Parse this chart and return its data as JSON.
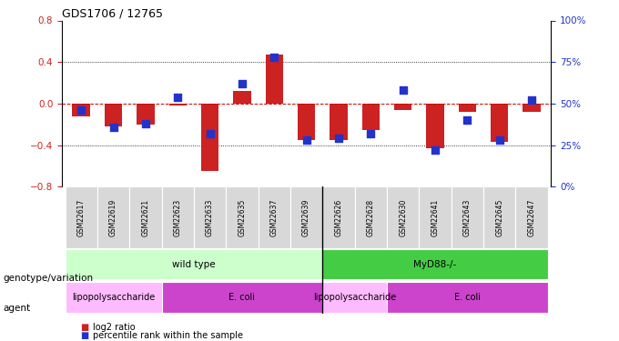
{
  "title": "GDS1706 / 12765",
  "samples": [
    "GSM22617",
    "GSM22619",
    "GSM22621",
    "GSM22623",
    "GSM22633",
    "GSM22635",
    "GSM22637",
    "GSM22639",
    "GSM22626",
    "GSM22628",
    "GSM22630",
    "GSM22641",
    "GSM22643",
    "GSM22645",
    "GSM22647"
  ],
  "log2_ratio": [
    -0.12,
    -0.22,
    -0.2,
    -0.02,
    -0.65,
    0.12,
    0.47,
    -0.35,
    -0.35,
    -0.25,
    -0.06,
    -0.43,
    -0.08,
    -0.37,
    -0.08
  ],
  "percentile_rank": [
    46,
    36,
    38,
    54,
    32,
    62,
    78,
    28,
    29,
    32,
    58,
    22,
    40,
    28,
    52
  ],
  "ylim": [
    -0.8,
    0.8
  ],
  "yticks_left": [
    -0.8,
    -0.4,
    0.0,
    0.4,
    0.8
  ],
  "yticks_right": [
    0,
    25,
    50,
    75,
    100
  ],
  "bar_color_red": "#cc2222",
  "bar_color_blue": "#2233cc",
  "zero_line_color": "#cc0000",
  "grid_color": "#000000",
  "ticklabel_bg": "#d8d8d8",
  "genotype_groups": [
    {
      "label": "wild type",
      "start": 0,
      "end": 7,
      "color": "#ccffcc"
    },
    {
      "label": "MyD88-/-",
      "start": 8,
      "end": 14,
      "color": "#44cc44"
    }
  ],
  "agent_groups": [
    {
      "label": "lipopolysaccharide",
      "start": 0,
      "end": 2,
      "color": "#ffbbff"
    },
    {
      "label": "E. coli",
      "start": 3,
      "end": 7,
      "color": "#cc44cc"
    },
    {
      "label": "lipopolysaccharide",
      "start": 8,
      "end": 9,
      "color": "#ffbbff"
    },
    {
      "label": "E. coli",
      "start": 10,
      "end": 14,
      "color": "#cc44cc"
    }
  ],
  "legend_red": "log2 ratio",
  "legend_blue": "percentile rank within the sample",
  "label_genotype": "genotype/variation",
  "label_agent": "agent",
  "separator_index": 7.5,
  "bar_width": 0.55,
  "blue_square_size": 30
}
